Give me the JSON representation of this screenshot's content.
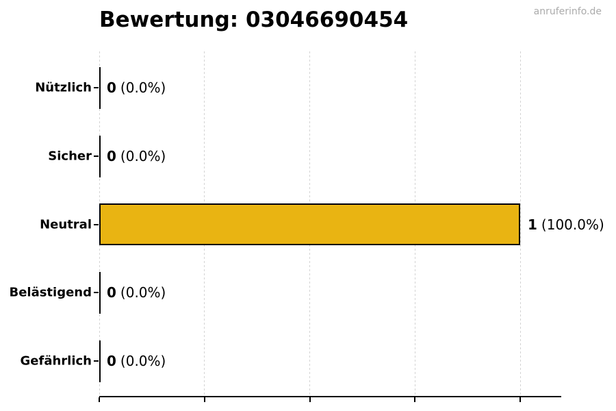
{
  "title": "Bewertung: 03046690454",
  "watermark": "anruferinfo.de",
  "colors": {
    "bar_fill": "#E9B412",
    "bar_border": "#000000",
    "gridline": "#D3D3D3",
    "axis": "#000000",
    "title_text": "#000000",
    "watermark_text": "#ABABAB"
  },
  "chart_data": {
    "type": "bar",
    "orientation": "horizontal",
    "title": "Bewertung: 03046690454",
    "categories": [
      "Nützlich",
      "Sicher",
      "Neutral",
      "Belästigend",
      "Gefährlich"
    ],
    "values": [
      0,
      0,
      1,
      0,
      0
    ],
    "value_labels": [
      {
        "count": "0",
        "percent": "(0.0%)"
      },
      {
        "count": "0",
        "percent": "(0.0%)"
      },
      {
        "count": "1",
        "percent": "(100.0%)"
      },
      {
        "count": "0",
        "percent": "(0.0%)"
      },
      {
        "count": "0",
        "percent": "(0.0%)"
      }
    ],
    "xlim": [
      0,
      1
    ],
    "x_ticks": [
      0,
      0.25,
      0.5,
      0.75,
      1
    ],
    "x_tick_labels": [
      "",
      "",
      "",
      "",
      ""
    ],
    "xlabel": "",
    "ylabel": "",
    "grid": "dashed-vertical",
    "legend": "none"
  }
}
